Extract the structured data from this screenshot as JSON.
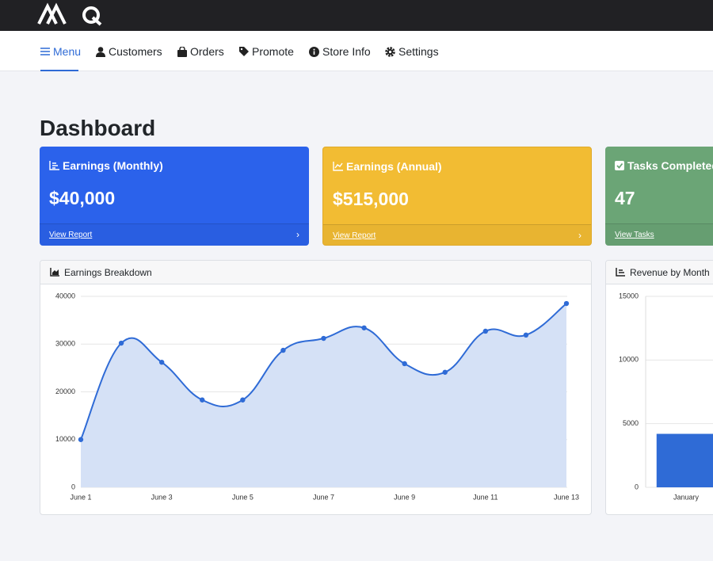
{
  "nav": {
    "items": [
      "Menu",
      "Customers",
      "Orders",
      "Promote",
      "Store Info",
      "Settings"
    ]
  },
  "page_title": "Dashboard",
  "cards": [
    {
      "title": "Earnings (Monthly)",
      "value": "$40,000",
      "link": "View Report"
    },
    {
      "title": "Earnings (Annual)",
      "value": "$515,000",
      "link": "View Report"
    },
    {
      "title": "Tasks Completed",
      "value": "47",
      "link": "View Tasks"
    }
  ],
  "chart_data": [
    {
      "type": "line",
      "title": "Earnings Breakdown",
      "area": true,
      "color": "#2f6bd6",
      "fill": "#d5e1f6",
      "grid": true,
      "categories": [
        "June 1",
        null,
        "June 3",
        null,
        "June 5",
        null,
        "June 7",
        null,
        "June 9",
        null,
        "June 11",
        null,
        "June 13"
      ],
      "values": [
        10000,
        30200,
        26200,
        18300,
        18300,
        28700,
        31200,
        33400,
        25900,
        24100,
        32700,
        31900,
        38500
      ],
      "ylim": [
        0,
        40000
      ],
      "yticks": [
        0,
        10000,
        20000,
        30000,
        40000
      ]
    },
    {
      "type": "bar",
      "title": "Revenue by Month",
      "color": "#2f6bd6",
      "grid": true,
      "categories": [
        "January"
      ],
      "values": [
        4200
      ],
      "ylim": [
        0,
        15000
      ],
      "yticks": [
        0,
        5000,
        10000,
        15000
      ]
    }
  ]
}
